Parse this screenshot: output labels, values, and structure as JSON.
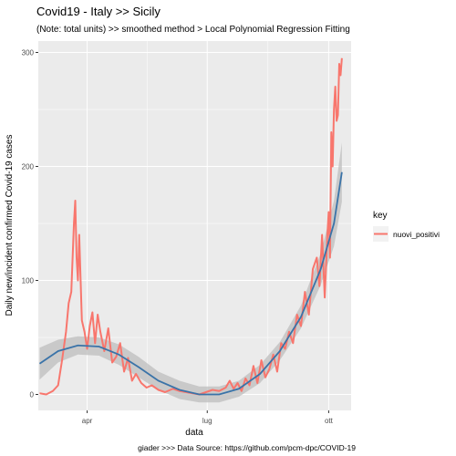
{
  "chart_data": {
    "type": "line",
    "title": "Covid19 - Italy >> Sicily",
    "subtitle": "(Note: total units) >> smoothed method > Local Polynomial Regression Fitting",
    "xlabel": "data",
    "ylabel": "Daily new/incident confirmed Covid-19 cases",
    "caption": "giader >>> Data Source: https://github.com/pcm-dpc/COVID-19",
    "x_ticks": [
      {
        "label": "apr",
        "date": "2020-04-01"
      },
      {
        "label": "lug",
        "date": "2020-07-01"
      },
      {
        "label": "ott",
        "date": "2020-10-01"
      }
    ],
    "xlim": [
      "2020-02-24",
      "2020-10-18"
    ],
    "y_ticks": [
      0,
      100,
      200,
      300
    ],
    "ylim": [
      -14,
      310
    ],
    "grid": true,
    "legend": {
      "title": "key",
      "position": "right",
      "entries": [
        "nuovi_positivi"
      ]
    },
    "colors": {
      "series": "#F8766D",
      "smooth": "#3A73A8",
      "ribbon": "#BEBEBE",
      "panel": "#EBEBEB",
      "grid": "#FFFFFF"
    },
    "series": [
      {
        "name": "nuovi_positivi",
        "x": [
          "2020-02-25",
          "2020-03-01",
          "2020-03-06",
          "2020-03-10",
          "2020-03-13",
          "2020-03-16",
          "2020-03-18",
          "2020-03-20",
          "2020-03-22",
          "2020-03-23",
          "2020-03-24",
          "2020-03-25",
          "2020-03-26",
          "2020-03-28",
          "2020-03-30",
          "2020-04-01",
          "2020-04-03",
          "2020-04-05",
          "2020-04-07",
          "2020-04-09",
          "2020-04-11",
          "2020-04-14",
          "2020-04-17",
          "2020-04-20",
          "2020-04-23",
          "2020-04-26",
          "2020-04-29",
          "2020-05-02",
          "2020-05-05",
          "2020-05-08",
          "2020-05-12",
          "2020-05-16",
          "2020-05-20",
          "2020-05-25",
          "2020-05-30",
          "2020-06-05",
          "2020-06-10",
          "2020-06-15",
          "2020-06-20",
          "2020-06-25",
          "2020-06-30",
          "2020-07-05",
          "2020-07-10",
          "2020-07-15",
          "2020-07-18",
          "2020-07-21",
          "2020-07-24",
          "2020-07-27",
          "2020-07-30",
          "2020-08-02",
          "2020-08-05",
          "2020-08-08",
          "2020-08-11",
          "2020-08-14",
          "2020-08-17",
          "2020-08-20",
          "2020-08-23",
          "2020-08-26",
          "2020-08-29",
          "2020-09-01",
          "2020-09-04",
          "2020-09-07",
          "2020-09-10",
          "2020-09-13",
          "2020-09-16",
          "2020-09-19",
          "2020-09-22",
          "2020-09-24",
          "2020-09-26",
          "2020-09-28",
          "2020-09-30",
          "2020-10-01",
          "2020-10-02",
          "2020-10-03",
          "2020-10-04",
          "2020-10-05",
          "2020-10-06",
          "2020-10-07",
          "2020-10-08",
          "2020-10-09",
          "2020-10-10",
          "2020-10-11"
        ],
        "y": [
          1,
          0,
          3,
          8,
          30,
          55,
          80,
          90,
          150,
          170,
          120,
          100,
          140,
          65,
          55,
          40,
          60,
          72,
          45,
          70,
          55,
          38,
          58,
          28,
          33,
          45,
          20,
          32,
          12,
          18,
          10,
          6,
          8,
          4,
          2,
          5,
          3,
          2,
          1,
          0,
          2,
          4,
          3,
          6,
          12,
          5,
          10,
          3,
          14,
          8,
          25,
          10,
          30,
          15,
          22,
          35,
          20,
          45,
          40,
          55,
          45,
          70,
          60,
          90,
          70,
          110,
          120,
          95,
          140,
          85,
          140,
          160,
          120,
          230,
          200,
          250,
          270,
          240,
          245,
          290,
          280,
          295
        ]
      }
    ],
    "smooth": {
      "x": [
        "2020-02-25",
        "2020-03-10",
        "2020-03-25",
        "2020-04-10",
        "2020-04-25",
        "2020-05-10",
        "2020-05-25",
        "2020-06-10",
        "2020-06-25",
        "2020-07-10",
        "2020-07-25",
        "2020-08-10",
        "2020-08-25",
        "2020-09-10",
        "2020-09-25",
        "2020-10-05",
        "2020-10-11"
      ],
      "y": [
        27,
        38,
        43,
        42,
        35,
        24,
        12,
        4,
        0,
        0,
        5,
        18,
        38,
        68,
        110,
        150,
        195
      ],
      "ci_half_width": [
        14,
        10,
        8,
        8,
        9,
        9,
        8,
        8,
        7,
        7,
        7,
        8,
        8,
        10,
        14,
        20,
        26
      ]
    }
  }
}
